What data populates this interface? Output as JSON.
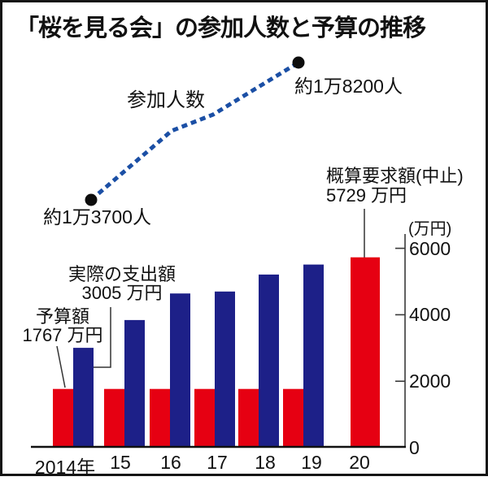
{
  "title": "「桜を見る会」の参加人数と予算の推移",
  "unit_label": "(万円)",
  "line_chart": {
    "series_label": "参加人数",
    "start_label": "約1万3700人",
    "end_label": "約1万8200人",
    "points": [
      {
        "year": 2014,
        "people": 13700
      },
      {
        "year": 2019,
        "people": 18200
      }
    ]
  },
  "annotations": {
    "budget": {
      "line1": "予算額",
      "line2": "1767 万円"
    },
    "actual": {
      "line1": "実際の支出額",
      "line2": "3005 万円"
    },
    "request": {
      "line1": "概算要求額(中止)",
      "line2": "5729 万円"
    }
  },
  "colors": {
    "budget_red": "#e60012",
    "expenditure_navy": "#1d2088",
    "participants_line_blue": "#1b4fa5"
  },
  "chart_data": {
    "type": "bar",
    "title": "「桜を見る会」の参加人数と予算の推移",
    "categories": [
      "2014年",
      "15",
      "16",
      "17",
      "18",
      "19",
      "20"
    ],
    "series": [
      {
        "key": "budget",
        "name": "予算額",
        "color": "#e60012",
        "values": [
          1767,
          1767,
          1767,
          1767,
          1767,
          1767,
          null
        ]
      },
      {
        "key": "expenditure",
        "name": "実際の支出額",
        "color": "#1d2088",
        "values": [
          3005,
          3840,
          4640,
          4700,
          5210,
          5510,
          null
        ]
      },
      {
        "key": "request",
        "name": "概算要求額(中止)",
        "color": "#e60012",
        "values": [
          null,
          null,
          null,
          null,
          null,
          null,
          5729
        ]
      }
    ],
    "ylabel": "(万円)",
    "yticks": [
      0,
      2000,
      4000,
      6000
    ],
    "ylim": [
      0,
      6400
    ],
    "grid": false,
    "legend": "labels-with-leader-lines",
    "line_overlay": {
      "type": "line",
      "name": "参加人数",
      "style": "dashed",
      "labeled_points": [
        {
          "year": 2014,
          "people": 13700,
          "label": "約1万3700人"
        },
        {
          "year": 2019,
          "people": 18200,
          "label": "約1万8200人"
        }
      ]
    }
  }
}
